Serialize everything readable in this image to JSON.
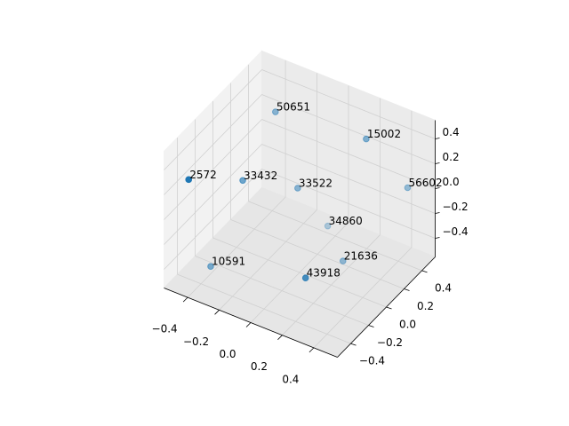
{
  "chart_data": {
    "type": "scatter3d",
    "x": [
      -0.45,
      -0.3,
      0.18,
      -0.31,
      -0.08,
      0.42,
      0.06,
      -0.35,
      0.23,
      0.19
    ],
    "y": [
      -0.45,
      0.26,
      0.43,
      -0.09,
      0.12,
      0.47,
      0.21,
      -0.38,
      0.08,
      -0.27
    ],
    "z": [
      0.3,
      0.4,
      0.3,
      0.1,
      0,
      0,
      -0.3,
      -0.4,
      -0.4,
      -0.3
    ],
    "labels": [
      "2572",
      "50651",
      "15002",
      "33432",
      "33522",
      "56602",
      "34860",
      "10591",
      "21636",
      "43918"
    ],
    "color": "#1f77b4",
    "xlim": [
      -0.55,
      0.55
    ],
    "ylim": [
      -0.55,
      0.55
    ],
    "zlim": [
      -0.55,
      0.55
    ],
    "xticks": [
      {
        "value": -0.4,
        "label": "−0.4"
      },
      {
        "value": -0.2,
        "label": "−0.2"
      },
      {
        "value": 0,
        "label": "0.0"
      },
      {
        "value": 0.2,
        "label": "0.2"
      },
      {
        "value": 0.4,
        "label": "0.4"
      }
    ],
    "yticks": [
      {
        "value": -0.4,
        "label": "−0.4"
      },
      {
        "value": -0.2,
        "label": "−0.2"
      },
      {
        "value": 0,
        "label": "0.0"
      },
      {
        "value": 0.2,
        "label": "0.2"
      },
      {
        "value": 0.4,
        "label": "0.4"
      }
    ],
    "zticks": [
      {
        "value": -0.4,
        "label": "−0.4"
      },
      {
        "value": -0.2,
        "label": "−0.2"
      },
      {
        "value": 0,
        "label": "0.0"
      },
      {
        "value": 0.2,
        "label": "0.2"
      },
      {
        "value": 0.4,
        "label": "0.4"
      }
    ],
    "grid": true
  }
}
